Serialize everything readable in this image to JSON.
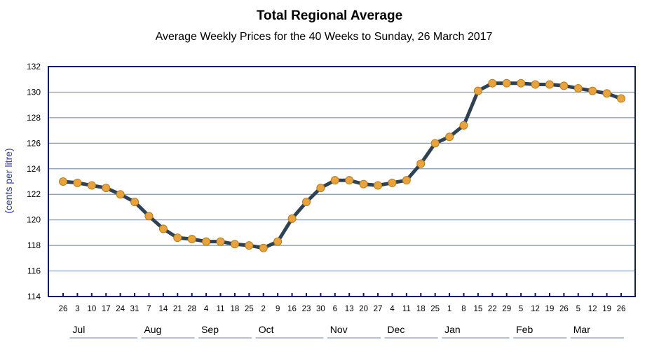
{
  "chart_data": {
    "type": "line",
    "title": "Total Regional Average",
    "subtitle": "Average Weekly Prices for the 40 Weeks to Sunday, 26 March 2017",
    "ylabel": "(cents per litre)",
    "xlabel": "",
    "ylim": [
      114,
      132
    ],
    "yticks": [
      114,
      116,
      118,
      120,
      122,
      124,
      126,
      128,
      130,
      132
    ],
    "grid": true,
    "legend": "none",
    "x": [
      "26",
      "3",
      "10",
      "17",
      "24",
      "31",
      "7",
      "14",
      "21",
      "28",
      "4",
      "11",
      "18",
      "25",
      "2",
      "9",
      "16",
      "23",
      "30",
      "6",
      "13",
      "20",
      "27",
      "4",
      "11",
      "18",
      "25",
      "1",
      "8",
      "15",
      "22",
      "29",
      "5",
      "12",
      "19",
      "26",
      "5",
      "12",
      "19",
      "26"
    ],
    "months": [
      {
        "label": "Jul",
        "start": 1,
        "end": 5
      },
      {
        "label": "Aug",
        "start": 6,
        "end": 9
      },
      {
        "label": "Sep",
        "start": 10,
        "end": 13
      },
      {
        "label": "Oct",
        "start": 14,
        "end": 18
      },
      {
        "label": "Nov",
        "start": 19,
        "end": 22
      },
      {
        "label": "Dec",
        "start": 23,
        "end": 26
      },
      {
        "label": "Jan",
        "start": 27,
        "end": 31
      },
      {
        "label": "Feb",
        "start": 32,
        "end": 35
      },
      {
        "label": "Mar",
        "start": 36,
        "end": 39
      }
    ],
    "series": [
      {
        "values": [
          123.0,
          122.9,
          122.7,
          122.5,
          122.0,
          121.4,
          120.3,
          119.3,
          118.6,
          118.5,
          118.3,
          118.3,
          118.1,
          118.0,
          117.8,
          118.3,
          120.1,
          121.4,
          122.5,
          123.1,
          123.1,
          122.8,
          122.7,
          122.9,
          123.1,
          124.4,
          126.0,
          126.5,
          127.4,
          130.1,
          130.7,
          130.7,
          130.7,
          130.6,
          130.6,
          130.5,
          130.3,
          130.1,
          129.9,
          129.5
        ]
      }
    ],
    "colors": {
      "line": "#2f4254",
      "marker": "#e8a33c",
      "marker_edge": "#b97b1d",
      "frame": "#121a6e",
      "grid": "#7f95b5",
      "ylabel": "#2f3aa0"
    }
  }
}
